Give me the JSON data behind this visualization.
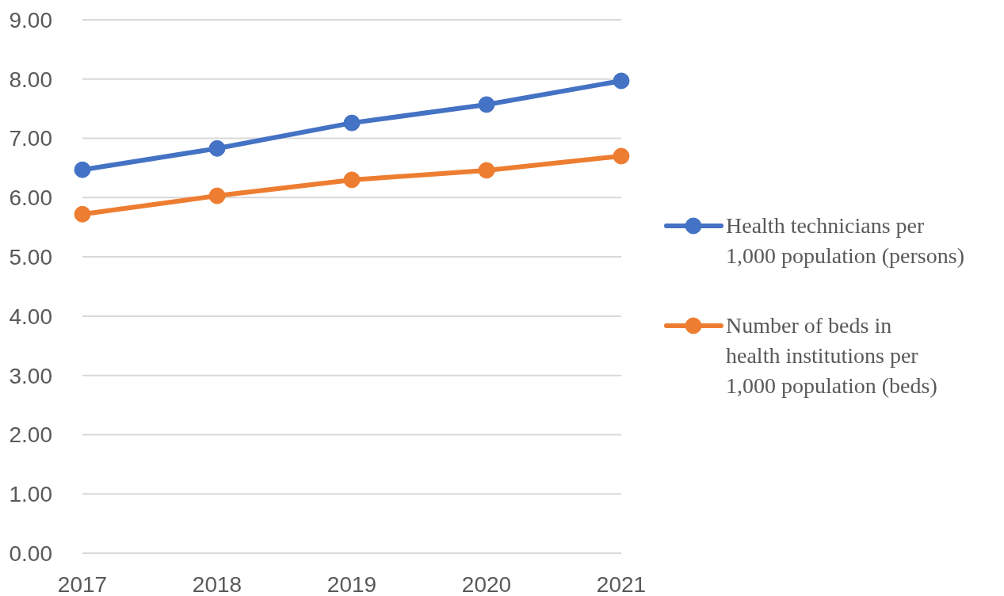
{
  "chart_data": {
    "type": "line",
    "categories": [
      "2017",
      "2018",
      "2019",
      "2020",
      "2021"
    ],
    "series": [
      {
        "name": "Health technicians per 1,000 population (persons)",
        "color": "#4472c4",
        "values": [
          6.47,
          6.83,
          7.26,
          7.57,
          7.97
        ]
      },
      {
        "name": "Number of beds in health institutions per 1,000 population (beds)",
        "color": "#ed7d31",
        "values": [
          5.72,
          6.03,
          6.3,
          6.46,
          6.7
        ]
      }
    ],
    "ylim": [
      0,
      9
    ],
    "yticks": [
      {
        "value": 0,
        "label": "0.00"
      },
      {
        "value": 1,
        "label": "1.00"
      },
      {
        "value": 2,
        "label": "2.00"
      },
      {
        "value": 3,
        "label": "3.00"
      },
      {
        "value": 4,
        "label": "4.00"
      },
      {
        "value": 5,
        "label": "5.00"
      },
      {
        "value": 6,
        "label": "6.00"
      },
      {
        "value": 7,
        "label": "7.00"
      },
      {
        "value": 8,
        "label": "8.00"
      },
      {
        "value": 9,
        "label": "9.00"
      }
    ],
    "grid": "y",
    "legend": "right",
    "marker": "circle",
    "line_style": "solid"
  }
}
